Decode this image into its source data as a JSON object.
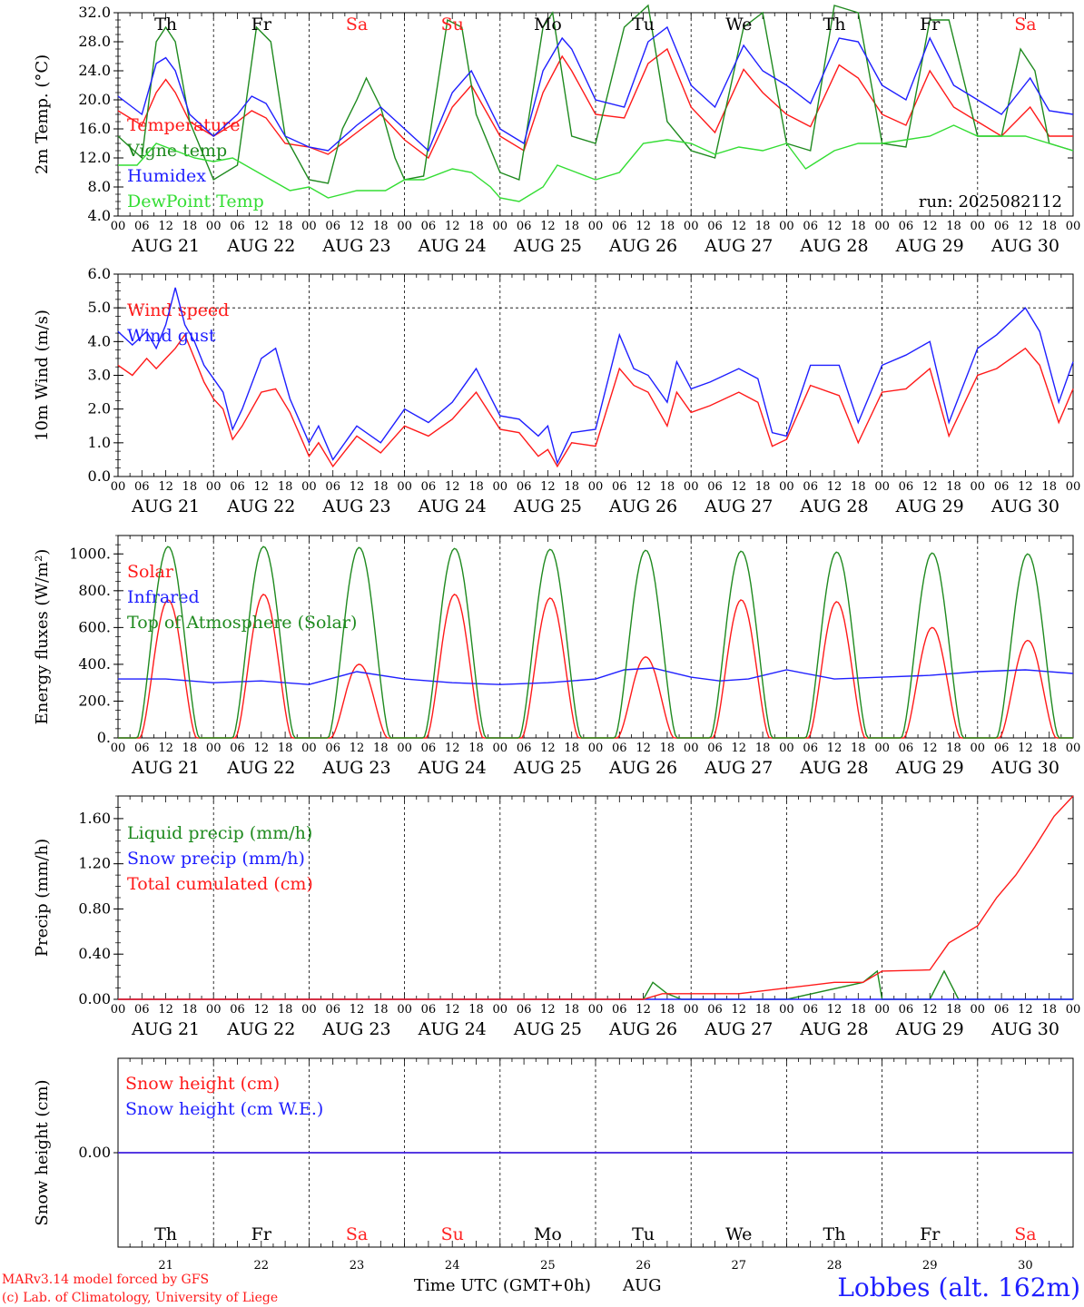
{
  "colors": {
    "red": "#ff1a1a",
    "dark_green": "#1f8a1f",
    "blue": "#1f1fff",
    "light_green": "#33dd33",
    "weekend_red": "#ff2222",
    "axis": "#000000"
  },
  "days": {
    "names": [
      "Th",
      "Fr",
      "Sa",
      "Su",
      "Mo",
      "Tu",
      "We",
      "Th",
      "Fr",
      "Sa"
    ],
    "weekend": [
      false,
      false,
      true,
      true,
      false,
      false,
      false,
      false,
      false,
      true
    ],
    "dates": [
      "AUG 21",
      "AUG 22",
      "AUG 23",
      "AUG 24",
      "AUG 25",
      "AUG 26",
      "AUG 27",
      "AUG 28",
      "AUG 29",
      "AUG 30"
    ],
    "day_numbers": [
      "21",
      "22",
      "23",
      "24",
      "25",
      "26",
      "27",
      "28",
      "29",
      "30"
    ],
    "hour_ticks": [
      "00",
      "06",
      "12",
      "18"
    ],
    "end_tick": "00"
  },
  "footer": {
    "credit_line1": "MARv3.14 model forced by GFS",
    "credit_line2": "(c) Lab. of Climatology, University of Liege",
    "axis_title": "Time UTC (GMT+0h)",
    "month": "AUG",
    "station": "Lobbes (alt. 162m)"
  },
  "chart_data": [
    {
      "type": "line",
      "id": "temperature",
      "ylabel": "2m Temp. (°C)",
      "ylim": [
        4,
        32
      ],
      "yticks": [
        "4.0",
        "8.0",
        "12.0",
        "16.0",
        "20.0",
        "24.0",
        "28.0",
        "32.0"
      ],
      "grid": "vertical dashed day separators",
      "annotation": "run: 2025082112",
      "x_unit": "days since AUG 21 00 UTC",
      "series": [
        {
          "name": "Temperature",
          "color": "red",
          "x": [
            0,
            0.25,
            0.4,
            0.5,
            0.6,
            0.75,
            1,
            1.25,
            1.4,
            1.55,
            1.75,
            2,
            2.2,
            2.5,
            2.75,
            3,
            3.25,
            3.5,
            3.7,
            4,
            4.25,
            4.45,
            4.65,
            4.75,
            5,
            5.3,
            5.55,
            5.75,
            6,
            6.25,
            6.55,
            6.75,
            7,
            7.25,
            7.55,
            7.75,
            8,
            8.25,
            8.5,
            8.75,
            9,
            9.25,
            9.55,
            9.75,
            10
          ],
          "y": [
            18.5,
            16.5,
            21,
            22.8,
            21,
            17,
            15,
            17,
            18.5,
            17.5,
            14,
            13.5,
            12.5,
            15.5,
            18,
            14.5,
            12,
            19,
            22,
            15,
            13,
            21,
            26,
            24,
            18,
            17.5,
            25,
            27,
            19,
            15.5,
            24.2,
            21,
            18,
            16.3,
            24.8,
            23,
            18,
            16.5,
            24,
            19,
            17,
            15,
            19,
            15,
            15
          ]
        },
        {
          "name": "Vigne temp",
          "color": "dark_green",
          "x": [
            0,
            0.25,
            0.4,
            0.5,
            0.6,
            0.75,
            1,
            1.25,
            1.45,
            1.6,
            1.75,
            2,
            2.2,
            2.35,
            2.5,
            2.6,
            2.75,
            2.9,
            3,
            3.2,
            3.45,
            3.6,
            3.75,
            4,
            4.2,
            4.45,
            4.55,
            4.75,
            5,
            5.3,
            5.55,
            5.75,
            6,
            6.25,
            6.55,
            6.75,
            7,
            7.25,
            7.5,
            7.75,
            8,
            8.25,
            8.5,
            8.7,
            9,
            9.25,
            9.45,
            9.6,
            9.75,
            10
          ],
          "y": [
            15,
            12,
            28,
            30,
            28,
            17,
            9,
            11,
            30,
            28,
            15,
            9,
            8.5,
            16,
            20,
            23,
            19,
            12,
            9,
            9.5,
            31,
            30,
            18,
            10,
            9,
            30,
            32,
            15,
            14,
            30,
            33,
            17,
            13,
            12,
            30,
            32,
            14,
            13,
            33,
            32,
            14,
            13.5,
            31,
            31,
            15,
            15,
            27,
            24,
            14,
            13
          ]
        },
        {
          "name": "Humidex",
          "color": "blue",
          "x": [
            0,
            0.25,
            0.4,
            0.5,
            0.6,
            0.75,
            1,
            1.25,
            1.4,
            1.55,
            1.75,
            2,
            2.2,
            2.5,
            2.75,
            3,
            3.25,
            3.5,
            3.7,
            4,
            4.25,
            4.45,
            4.65,
            4.75,
            5,
            5.3,
            5.55,
            5.75,
            6,
            6.25,
            6.55,
            6.75,
            7,
            7.25,
            7.55,
            7.75,
            8,
            8.25,
            8.5,
            8.75,
            9,
            9.25,
            9.55,
            9.75,
            10
          ],
          "y": [
            20.5,
            18,
            25,
            25.8,
            24,
            18,
            15,
            18,
            20.5,
            19.5,
            15,
            13.5,
            13,
            16.5,
            19,
            16,
            13,
            21,
            24,
            16,
            14,
            24,
            28.5,
            27,
            20,
            19,
            28,
            30,
            22,
            19,
            27.5,
            24,
            22,
            19.5,
            28.5,
            28,
            22,
            20,
            28.5,
            22,
            20,
            18,
            23,
            18.5,
            18
          ]
        },
        {
          "name": "DewPoint Temp",
          "color": "light_green",
          "x": [
            0,
            0.2,
            0.4,
            0.6,
            0.8,
            1,
            1.2,
            1.4,
            1.6,
            1.8,
            2,
            2.2,
            2.5,
            2.8,
            3,
            3.2,
            3.5,
            3.7,
            3.9,
            4,
            4.2,
            4.45,
            4.6,
            4.8,
            5,
            5.25,
            5.5,
            5.75,
            6,
            6.25,
            6.5,
            6.75,
            7,
            7.2,
            7.5,
            7.75,
            8,
            8.25,
            8.5,
            8.75,
            9,
            9.25,
            9.5,
            9.75,
            10
          ],
          "y": [
            11,
            11,
            14,
            13,
            12,
            11.5,
            12,
            10.5,
            9,
            7.5,
            8,
            6.5,
            7.5,
            7.5,
            9,
            9,
            10.5,
            10,
            8,
            6.5,
            6,
            8,
            11,
            10,
            9,
            10,
            14,
            14.5,
            14,
            12.5,
            13.5,
            13,
            14,
            10.5,
            13,
            14,
            14,
            14.5,
            15,
            16.5,
            15,
            15,
            15,
            14,
            13
          ]
        }
      ]
    },
    {
      "type": "line",
      "id": "wind",
      "ylabel": "10m Wind (m/s)",
      "ylim": [
        0,
        6
      ],
      "yticks": [
        "0.0",
        "1.0",
        "2.0",
        "3.0",
        "4.0",
        "5.0",
        "6.0"
      ],
      "grid": "vertical dashed day separators; dashed line at 5.0",
      "x_unit": "days since AUG 21 00 UTC",
      "series": [
        {
          "name": "Wind speed",
          "color": "red",
          "x": [
            0,
            0.15,
            0.3,
            0.4,
            0.5,
            0.6,
            0.7,
            0.8,
            0.9,
            1,
            1.1,
            1.2,
            1.3,
            1.5,
            1.65,
            1.8,
            2,
            2.1,
            2.25,
            2.5,
            2.75,
            3,
            3.25,
            3.5,
            3.75,
            4,
            4.2,
            4.4,
            4.5,
            4.6,
            4.75,
            5,
            5.25,
            5.4,
            5.55,
            5.75,
            5.85,
            6,
            6.2,
            6.5,
            6.7,
            6.85,
            7,
            7.25,
            7.55,
            7.75,
            8,
            8.25,
            8.5,
            8.7,
            9,
            9.2,
            9.5,
            9.65,
            9.85,
            10
          ],
          "y": [
            3.3,
            3,
            3.5,
            3.2,
            3.5,
            3.8,
            4.2,
            3.5,
            2.8,
            2.3,
            2,
            1.1,
            1.5,
            2.5,
            2.6,
            1.9,
            0.6,
            1,
            0.3,
            1.2,
            0.7,
            1.5,
            1.2,
            1.7,
            2.5,
            1.4,
            1.3,
            0.6,
            0.8,
            0.3,
            1,
            0.9,
            3.2,
            2.7,
            2.5,
            1.5,
            2.5,
            1.9,
            2.1,
            2.5,
            2.2,
            0.9,
            1.1,
            2.7,
            2.4,
            1,
            2.5,
            2.6,
            3.2,
            1.2,
            3,
            3.2,
            3.8,
            3.3,
            1.6,
            2.6
          ]
        },
        {
          "name": "Wind gust",
          "color": "blue",
          "x": [
            0,
            0.15,
            0.3,
            0.4,
            0.5,
            0.6,
            0.7,
            0.8,
            0.9,
            1,
            1.1,
            1.2,
            1.3,
            1.5,
            1.65,
            1.8,
            2,
            2.1,
            2.25,
            2.5,
            2.75,
            3,
            3.25,
            3.5,
            3.75,
            4,
            4.2,
            4.4,
            4.5,
            4.6,
            4.75,
            5,
            5.25,
            5.4,
            5.55,
            5.75,
            5.85,
            6,
            6.2,
            6.5,
            6.7,
            6.85,
            7,
            7.25,
            7.55,
            7.75,
            8,
            8.25,
            8.5,
            8.7,
            9,
            9.2,
            9.5,
            9.65,
            9.85,
            10
          ],
          "y": [
            4.3,
            3.9,
            4.3,
            3.8,
            4.5,
            5.6,
            4.5,
            4,
            3.3,
            2.9,
            2.5,
            1.4,
            2,
            3.5,
            3.8,
            2.3,
            1,
            1.5,
            0.5,
            1.5,
            1,
            2,
            1.6,
            2.2,
            3.2,
            1.8,
            1.7,
            1.2,
            1.5,
            0.4,
            1.3,
            1.4,
            4.2,
            3.2,
            3,
            2.2,
            3.4,
            2.6,
            2.8,
            3.2,
            2.9,
            1.3,
            1.2,
            3.3,
            3.3,
            1.6,
            3.3,
            3.6,
            4,
            1.6,
            3.8,
            4.2,
            5,
            4.3,
            2.2,
            3.4
          ]
        }
      ]
    },
    {
      "type": "line",
      "id": "energy",
      "ylabel": "Energy fluxes (W/m²)",
      "ylim": [
        0,
        1100
      ],
      "yticks": [
        "0.",
        "200.",
        "400.",
        "600.",
        "800.",
        "1000."
      ],
      "grid": "vertical dashed day separators",
      "x_unit": "days since AUG 21 00 UTC",
      "series": [
        {
          "name": "Solar",
          "color": "red",
          "diurnal": true,
          "sunrise": 0.23,
          "sunset": 0.82,
          "peak_by_day": [
            750,
            780,
            400,
            780,
            760,
            440,
            750,
            740,
            600,
            530
          ]
        },
        {
          "name": "Infrared",
          "color": "blue",
          "x": [
            0,
            0.5,
            1,
            1.5,
            2,
            2.5,
            3,
            3.5,
            4,
            4.5,
            5,
            5.3,
            5.6,
            6,
            6.3,
            6.6,
            7,
            7.5,
            8,
            8.5,
            9,
            9.5,
            10
          ],
          "y": [
            320,
            320,
            300,
            310,
            290,
            360,
            320,
            300,
            290,
            300,
            320,
            370,
            380,
            330,
            310,
            320,
            370,
            320,
            330,
            340,
            360,
            370,
            350
          ]
        },
        {
          "name": "Top of Atmosphere (Solar)",
          "color": "dark_green",
          "diurnal": true,
          "sunrise": 0.2,
          "sunset": 0.85,
          "peak_by_day": [
            1040,
            1040,
            1035,
            1030,
            1025,
            1020,
            1015,
            1010,
            1005,
            1000
          ]
        }
      ]
    },
    {
      "type": "line",
      "id": "precip",
      "ylabel": "Precip (mm/h)",
      "ylim": [
        0,
        1.8
      ],
      "yticks": [
        "0.00",
        "0.40",
        "0.80",
        "1.20",
        "1.60"
      ],
      "grid": "vertical dashed day separators",
      "x_unit": "days since AUG 21 00 UTC",
      "series": [
        {
          "name": "Liquid precip (mm/h)",
          "color": "dark_green",
          "x": [
            0,
            5.5,
            5.6,
            5.75,
            5.9,
            6,
            7,
            7.8,
            7.95,
            8,
            8.5,
            8.65,
            8.8,
            8.85,
            9,
            9.1,
            9.4,
            9.6,
            9.7,
            9.75,
            9.85,
            10
          ],
          "y": [
            0,
            0,
            0.15,
            0.05,
            0,
            0,
            0,
            0.15,
            0.25,
            0,
            0,
            0.25,
            0,
            0,
            0,
            0,
            0,
            0,
            0,
            0,
            0,
            0
          ]
        },
        {
          "name": "Snow precip (mm/h)",
          "color": "blue",
          "x": [
            0,
            10
          ],
          "y": [
            0,
            0
          ]
        },
        {
          "name": "Total cumulated (cm)",
          "color": "red",
          "x": [
            0,
            5.5,
            5.7,
            6,
            6.5,
            7,
            7.5,
            7.8,
            8,
            8.5,
            8.7,
            9,
            9.2,
            9.4,
            9.6,
            9.8,
            10
          ],
          "y": [
            0,
            0,
            0.05,
            0.05,
            0.05,
            0.1,
            0.15,
            0.15,
            0.25,
            0.26,
            0.5,
            0.65,
            0.9,
            1.1,
            1.35,
            1.62,
            1.8
          ]
        }
      ]
    },
    {
      "type": "line",
      "id": "snow",
      "ylabel": "Snow height (cm)",
      "ylim": [
        -1,
        1
      ],
      "yticks": [
        "0.00"
      ],
      "grid": "vertical dashed day separators",
      "x_unit": "days since AUG 21 00 UTC",
      "series": [
        {
          "name": "Snow height (cm)",
          "color": "red",
          "x": [
            0,
            10
          ],
          "y": [
            0,
            0
          ]
        },
        {
          "name": "Snow height (cm W.E.)",
          "color": "blue",
          "x": [
            0,
            10
          ],
          "y": [
            0,
            0
          ]
        }
      ]
    }
  ]
}
